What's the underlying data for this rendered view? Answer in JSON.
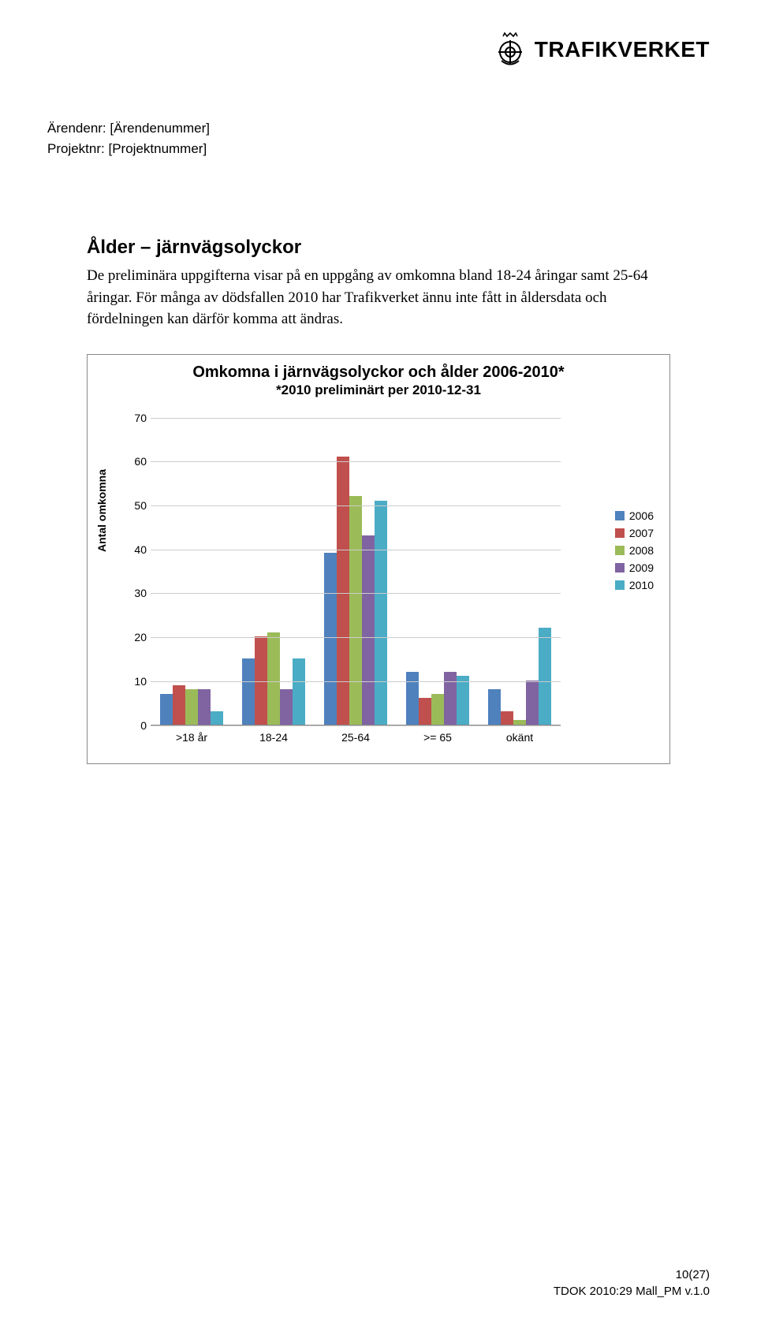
{
  "logo": {
    "text": "TRAFIKVERKET"
  },
  "meta": {
    "arende_label": "Ärendenr:",
    "arende_value": "[Ärendenummer]",
    "projekt_label": "Projektnr:",
    "projekt_value": "[Projektnummer]"
  },
  "section": {
    "title": "Ålder – järnvägsolyckor",
    "body": "De preliminära uppgifterna visar på en uppgång av omkomna bland 18-24 åringar samt 25-64 åringar. För många av dödsfallen 2010 har Trafikverket ännu inte fått in åldersdata och fördelningen kan därför komma att ändras."
  },
  "chart": {
    "type": "bar",
    "title": "Omkomna i järnvägsolyckor och ålder 2006-2010*",
    "subtitle": "*2010 preliminärt per 2010-12-31",
    "y_label": "Antal omkomna",
    "y_max": 70,
    "y_tick_step": 10,
    "y_ticks": [
      0,
      10,
      20,
      30,
      40,
      50,
      60,
      70
    ],
    "categories": [
      ">18 år",
      "18-24",
      "25-64",
      ">= 65",
      "okänt"
    ],
    "series": [
      {
        "name": "2006",
        "color": "#4f81bd",
        "values": [
          7,
          15,
          39,
          12,
          8
        ]
      },
      {
        "name": "2007",
        "color": "#c0504d",
        "values": [
          9,
          20,
          61,
          6,
          3
        ]
      },
      {
        "name": "2008",
        "color": "#9bbb59",
        "values": [
          8,
          21,
          52,
          7,
          1
        ]
      },
      {
        "name": "2009",
        "color": "#8064a2",
        "values": [
          8,
          8,
          43,
          12,
          10
        ]
      },
      {
        "name": "2010",
        "color": "#4bacc6",
        "values": [
          3,
          15,
          51,
          11,
          22
        ]
      }
    ],
    "grid_color": "#cccccc",
    "axis_color": "#888888",
    "background_color": "#ffffff"
  },
  "footer": {
    "page": "10(27)",
    "doc": "TDOK 2010:29 Mall_PM  v.1.0"
  }
}
